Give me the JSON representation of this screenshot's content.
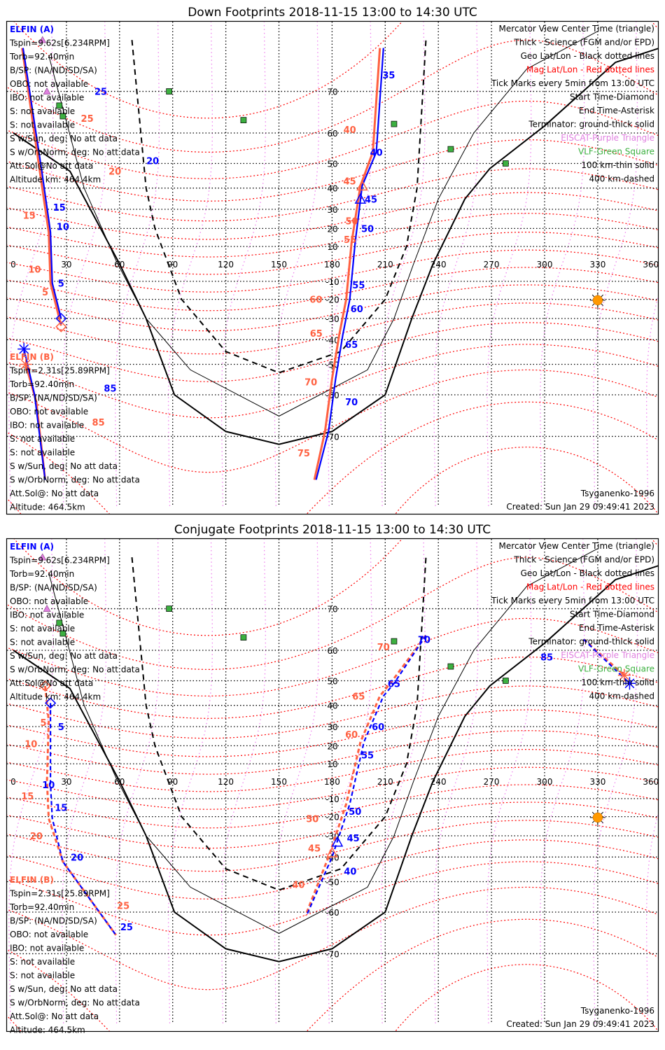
{
  "colors": {
    "elfin_a": "#0000ff",
    "elfin_b": "#ff6040",
    "mag_grid": "#ff0000",
    "mag_lon": "#ee82ee",
    "geo_grid": "#000000",
    "eiscat": "#e080e0",
    "vlf": "#3cb040",
    "sun": "#ff9900"
  },
  "lon_labels": [
    "0",
    "30",
    "60",
    "90",
    "120",
    "150",
    "180",
    "210",
    "240",
    "270",
    "300",
    "330",
    "360"
  ],
  "lat_labels": [
    {
      "lat": 70,
      "label": "70"
    },
    {
      "lat": 60,
      "label": "60"
    },
    {
      "lat": 50,
      "label": "50"
    },
    {
      "lat": 40,
      "label": "40"
    },
    {
      "lat": 30,
      "label": "30"
    },
    {
      "lat": 20,
      "label": "20"
    },
    {
      "lat": 10,
      "label": "10"
    },
    {
      "lat": -10,
      "label": "-10"
    },
    {
      "lat": -20,
      "label": "-20"
    },
    {
      "lat": -30,
      "label": "-30"
    },
    {
      "lat": -40,
      "label": "-40"
    },
    {
      "lat": -50,
      "label": "-50"
    },
    {
      "lat": -60,
      "label": "-60"
    },
    {
      "lat": -70,
      "label": "-70"
    }
  ],
  "terminator_ground": [
    [
      0,
      60
    ],
    [
      32,
      47
    ],
    [
      60,
      0
    ],
    [
      75,
      -30
    ],
    [
      91,
      -60
    ],
    [
      120,
      -69
    ],
    [
      150,
      -71.5
    ],
    [
      180,
      -69
    ],
    [
      210,
      -60
    ],
    [
      225,
      -30
    ],
    [
      237,
      0
    ],
    [
      255,
      35
    ],
    [
      269,
      48
    ],
    [
      300,
      62
    ],
    [
      340,
      75
    ],
    [
      365,
      77
    ]
  ],
  "terminator_100km": [
    [
      20,
      76
    ],
    [
      40,
      40
    ],
    [
      58,
      2
    ],
    [
      75,
      -30
    ],
    [
      100,
      -52
    ],
    [
      150,
      -65.6
    ],
    [
      200,
      -52
    ],
    [
      215,
      -30
    ],
    [
      226,
      0
    ],
    [
      240,
      35
    ],
    [
      260,
      60
    ],
    [
      290,
      74
    ],
    [
      330,
      79
    ]
  ],
  "terminator_400km": [
    [
      67,
      78
    ],
    [
      75,
      40
    ],
    [
      80,
      20
    ],
    [
      95,
      -20
    ],
    [
      120,
      -45
    ],
    [
      150,
      -53
    ],
    [
      185,
      -45
    ],
    [
      210,
      -20
    ],
    [
      222,
      10
    ],
    [
      228,
      40
    ],
    [
      233,
      78
    ]
  ],
  "vlf_sites": [
    [
      88,
      70
    ],
    [
      26,
      67
    ],
    [
      28,
      64.5
    ],
    [
      130,
      63.5
    ],
    [
      215,
      62.5
    ],
    [
      247,
      55
    ],
    [
      278,
      50
    ]
  ],
  "eiscat_sites": [
    [
      16.5,
      78
    ],
    [
      19,
      70
    ]
  ],
  "sun": [
    330,
    -20.5
  ],
  "panels": [
    {
      "title": "Down Footprints 2018-11-15 13:00 to 14:30 UTC",
      "elfin_a": {
        "name": "ELFIN (A)",
        "lines": [
          "Tspin=9.62s[6.234RPM]",
          "Torb=92.40min",
          "B/SP: (NA/ND/SD/SA)",
          "OBO: not available",
          "IBO: not available",
          "S: not available",
          "S: not available",
          "S w/Sun, deg: No att data",
          "S w/OrbNorm, deg: No att data",
          "Att.Sol@No att data",
          "Altitude km: 464.4km"
        ]
      },
      "elfin_b": {
        "name": "ELFIN (B)",
        "lines": [
          "Tspin=2.31s[25.89RPM]",
          "Torb=92.40min",
          "B/SP: (NA/ND/SD/SA)",
          "OBO: not available",
          "IBO: not available",
          "S: not available",
          "S: not available",
          "S w/Sun, deg: No att data",
          "S w/OrbNorm, deg: No att data",
          "Att.Sol@: No att data",
          "Altitude: 464.5km"
        ]
      },
      "legend": [
        "Mercator View Center Time (triangle)",
        "Thick - Science (FGM and/or EPD)",
        "Geo Lat/Lon - Black dotted lines",
        "Mag Lat/Lon - Red dotted lines",
        "Tick Marks every 5min from 13:00 UTC",
        "Start Time-Diamond",
        "End Time-Asterisk",
        "Terminator: ground-thick solid",
        "EISCAT-Purple Triangle",
        "VLF-Green Square",
        "100 km-thin solid",
        "400 km-dashed"
      ],
      "model": "Tsyganenko-1996",
      "created": "Created: Sun Jan 29 09:49:41 2023",
      "tracks": [
        {
          "sat": "b",
          "dashed": false,
          "points": [
            [
              5,
              77
            ],
            [
              15,
              47
            ],
            [
              20,
              18
            ],
            [
              21,
              -11
            ],
            [
              27,
              -33.5
            ]
          ]
        },
        {
          "sat": "a",
          "dashed": false,
          "points": [
            [
              5.5,
              77
            ],
            [
              16,
              47.5
            ],
            [
              21,
              18
            ],
            [
              22,
              -11
            ],
            [
              27,
              -30
            ]
          ]
        },
        {
          "sat": "b",
          "dashed": false,
          "points": [
            [
              207,
              77
            ],
            [
              203,
              54
            ],
            [
              196,
              41
            ],
            [
              191,
              12
            ],
            [
              188,
              -20
            ],
            [
              184,
              -38
            ],
            [
              180,
              -55
            ],
            [
              176,
              -69
            ],
            [
              170,
              -77
            ]
          ]
        },
        {
          "sat": "a",
          "dashed": false,
          "points": [
            [
              209,
              77
            ],
            [
              205,
              54
            ],
            [
              197,
              41
            ],
            [
              193,
              12
            ],
            [
              190,
              -20
            ],
            [
              186,
              -38
            ],
            [
              182,
              -55
            ],
            [
              178,
              -69
            ],
            [
              171,
              -77
            ]
          ]
        },
        {
          "sat": "b",
          "dashed": false,
          "points": [
            [
              7,
              -50
            ],
            [
              13,
              -62
            ],
            [
              18,
              -77
            ]
          ]
        },
        {
          "sat": "a",
          "dashed": false,
          "points": [
            [
              6,
              -44
            ],
            [
              12,
              -60
            ],
            [
              18,
              -77
            ]
          ]
        }
      ],
      "ticks": [
        {
          "sat": "a",
          "lon": 17,
          "lat": 70,
          "label": "25"
        },
        {
          "sat": "a",
          "lon": 21,
          "lat": 51,
          "label": "20"
        },
        {
          "sat": "a",
          "lon": 26,
          "lat": 31,
          "label": "15"
        },
        {
          "sat": "a",
          "lon": 28,
          "lat": 21,
          "label": "10"
        },
        {
          "sat": "a",
          "lon": 27,
          "lat": -11,
          "label": "5"
        },
        {
          "sat": "b",
          "lon": 3,
          "lat": 64,
          "label": "25"
        },
        {
          "sat": "b",
          "lon": 6,
          "lat": 47,
          "label": "20"
        },
        {
          "sat": "b",
          "lon": 9,
          "lat": 27,
          "label": "15"
        },
        {
          "sat": "b",
          "lon": 12,
          "lat": -3,
          "label": "10"
        },
        {
          "sat": "b",
          "lon": 18,
          "lat": -16,
          "label": "5"
        },
        {
          "sat": "a",
          "lon": 212,
          "lat": 73,
          "label": "35"
        },
        {
          "sat": "a",
          "lon": 205,
          "lat": 54,
          "label": "40"
        },
        {
          "sat": "a",
          "lon": 202,
          "lat": 35,
          "label": "45"
        },
        {
          "sat": "a",
          "lon": 200,
          "lat": 20,
          "label": "50"
        },
        {
          "sat": "a",
          "lon": 195,
          "lat": -12,
          "label": "55"
        },
        {
          "sat": "a",
          "lon": 194,
          "lat": -25,
          "label": "60"
        },
        {
          "sat": "a",
          "lon": 191,
          "lat": -42,
          "label": "65"
        },
        {
          "sat": "a",
          "lon": 187,
          "lat": -62,
          "label": "70"
        },
        {
          "sat": "b",
          "lon": 190,
          "lat": 61,
          "label": "40"
        },
        {
          "sat": "b",
          "lon": 186,
          "lat": 43,
          "label": "45"
        },
        {
          "sat": "b",
          "lon": 184,
          "lat": 24,
          "label": "50"
        },
        {
          "sat": "b",
          "lon": 183,
          "lat": 14,
          "label": "55"
        },
        {
          "sat": "b",
          "lon": 178,
          "lat": -20,
          "label": "60"
        },
        {
          "sat": "b",
          "lon": 175,
          "lat": -37,
          "label": "65"
        },
        {
          "sat": "b",
          "lon": 172,
          "lat": -56,
          "label": "70"
        },
        {
          "sat": "b",
          "lon": 164,
          "lat": -73,
          "label": "75"
        },
        {
          "sat": "a",
          "lon": 16,
          "lat": -58,
          "label": "85"
        },
        {
          "sat": "b",
          "lon": 3,
          "lat": -67,
          "label": "85"
        }
      ],
      "markers": [
        {
          "sat": "a",
          "type": "diamond",
          "lon": 27,
          "lat": -30
        },
        {
          "sat": "b",
          "type": "diamond",
          "lon": 27,
          "lat": -34
        },
        {
          "sat": "b",
          "type": "triangle",
          "lon": 197,
          "lat": 41
        },
        {
          "sat": "a",
          "type": "triangle",
          "lon": 196,
          "lat": 35
        },
        {
          "sat": "a",
          "type": "asterisk",
          "lon": 6,
          "lat": -44
        },
        {
          "sat": "b",
          "type": "asterisk",
          "lon": 7,
          "lat": -50
        }
      ]
    },
    {
      "title": "Conjugate Footprints 2018-11-15 13:00 to 14:30 UTC",
      "elfin_a": {
        "name": "ELFIN (A)",
        "lines": [
          "Tspin=9.62s[6.234RPM]",
          "Torb=92.40min",
          "B/SP: (NA/ND/SD/SA)",
          "OBO: not available",
          "IBO: not available",
          "S: not available",
          "S: not available",
          "S w/Sun, deg: No att data",
          "S w/OrbNorm, deg: No att data",
          "Att.Sol@No att data",
          "Altitude km: 464.4km"
        ]
      },
      "elfin_b": {
        "name": "ELFIN (B)",
        "lines": [
          "Tspin=2.31s[25.89RPM]",
          "Torb=92.40min",
          "B/SP: (NA/ND/SD/SA)",
          "OBO: not available",
          "IBO: not available",
          "S: not available",
          "S: not available",
          "S w/Sun, deg: No att data",
          "S w/OrbNorm, deg: No att data",
          "Att.Sol@: No att data",
          "Altitude: 464.5km"
        ]
      },
      "legend": [
        "Mercator View Center Time (triangle)",
        "Thick - Science (FGM and/or EPD)",
        "Geo Lat/Lon - Black dotted lines",
        "Mag Lat/Lon - Red dotted lines",
        "Tick Marks every 5min from 13:00 UTC",
        "Start Time-Diamond",
        "End Time-Asterisk",
        "Terminator: ground-thick solid",
        "EISCAT-Purple Triangle",
        "VLF-Green Square",
        "100 km-thin solid",
        "400 km-dashed"
      ],
      "model": "Tsyganenko-1996",
      "created": "Created: Sun Jan 29 09:49:41 2023",
      "tracks": [
        {
          "sat": "b",
          "dashed": true,
          "points": [
            [
              18,
              48
            ],
            [
              20,
              33
            ],
            [
              19,
              0
            ],
            [
              20,
              -21
            ],
            [
              28,
              -42
            ],
            [
              58,
              -66
            ]
          ]
        },
        {
          "sat": "a",
          "dashed": true,
          "points": [
            [
              21,
              41
            ],
            [
              21,
              33
            ],
            [
              21,
              -1.5
            ],
            [
              22,
              -21
            ],
            [
              28,
              -42
            ],
            [
              58,
              -66
            ]
          ]
        },
        {
          "sat": "b",
          "dashed": true,
          "points": [
            [
              233,
              64
            ],
            [
              214,
              50
            ],
            [
              207,
              44
            ],
            [
              196,
              22
            ],
            [
              188,
              -13
            ],
            [
              178,
              -40
            ],
            [
              165,
              -61
            ]
          ]
        },
        {
          "sat": "a",
          "dashed": true,
          "points": [
            [
              233,
              64
            ],
            [
              215,
              49
            ],
            [
              209,
              44
            ],
            [
              198,
              22
            ],
            [
              190,
              -13
            ],
            [
              180,
              -40
            ],
            [
              166,
              -60.5
            ]
          ]
        },
        {
          "sat": "b",
          "dashed": true,
          "points": [
            [
              322,
              63
            ],
            [
              345,
              52
            ]
          ]
        },
        {
          "sat": "a",
          "dashed": true,
          "points": [
            [
              322,
              63
            ],
            [
              348,
              49
            ]
          ]
        }
      ],
      "ticks": [
        {
          "sat": "a",
          "lon": 27,
          "lat": 30,
          "label": "5"
        },
        {
          "sat": "a",
          "lon": 27,
          "lat": -2,
          "label": "10"
        },
        {
          "sat": "a",
          "lon": 27,
          "lat": -15,
          "label": "15"
        },
        {
          "sat": "a",
          "lon": 36,
          "lat": -40,
          "label": "20"
        },
        {
          "sat": "a",
          "lon": 64,
          "lat": -64,
          "label": "25"
        },
        {
          "sat": "b",
          "lon": 17,
          "lat": 32,
          "label": "5"
        },
        {
          "sat": "b",
          "lon": 10,
          "lat": 21,
          "label": "10"
        },
        {
          "sat": "b",
          "lon": 8,
          "lat": -8.5,
          "label": "15"
        },
        {
          "sat": "b",
          "lon": 13,
          "lat": -30,
          "label": "20"
        },
        {
          "sat": "b",
          "lon": 36,
          "lat": -58,
          "label": "25"
        },
        {
          "sat": "a",
          "lon": 180,
          "lat": -46,
          "label": "40"
        },
        {
          "sat": "a",
          "lon": 188,
          "lat": -31,
          "label": "45"
        },
        {
          "sat": "a",
          "lon": 193,
          "lat": -17,
          "label": "50"
        },
        {
          "sat": "a",
          "lon": 200,
          "lat": 15,
          "label": "55"
        },
        {
          "sat": "a",
          "lon": 206,
          "lat": 30,
          "label": "60"
        },
        {
          "sat": "a",
          "lon": 215,
          "lat": 49,
          "label": "65"
        },
        {
          "sat": "a",
          "lon": 232,
          "lat": 63,
          "label": "70"
        },
        {
          "sat": "b",
          "lon": 161,
          "lat": -51,
          "label": "40"
        },
        {
          "sat": "b",
          "lon": 170,
          "lat": -36,
          "label": "45"
        },
        {
          "sat": "b",
          "lon": 176,
          "lat": -21,
          "label": "50"
        },
        {
          "sat": "b",
          "lon": 187,
          "lat": 26,
          "label": "60"
        },
        {
          "sat": "b",
          "lon": 195,
          "lat": 44,
          "label": "65"
        },
        {
          "sat": "b",
          "lon": 209,
          "lat": 61,
          "label": "70"
        },
        {
          "sat": "a",
          "lon": 340,
          "lat": 58,
          "label": "85"
        }
      ],
      "markers": [
        {
          "sat": "b",
          "type": "diamond",
          "lon": 18,
          "lat": 48
        },
        {
          "sat": "a",
          "type": "diamond",
          "lon": 21,
          "lat": 41
        },
        {
          "sat": "b",
          "type": "triangle",
          "lon": 180,
          "lat": -38
        },
        {
          "sat": "a",
          "type": "triangle",
          "lon": 183,
          "lat": -33
        },
        {
          "sat": "a",
          "type": "asterisk",
          "lon": 348,
          "lat": 49
        },
        {
          "sat": "b",
          "type": "asterisk",
          "lon": 345,
          "lat": 52
        }
      ]
    }
  ]
}
